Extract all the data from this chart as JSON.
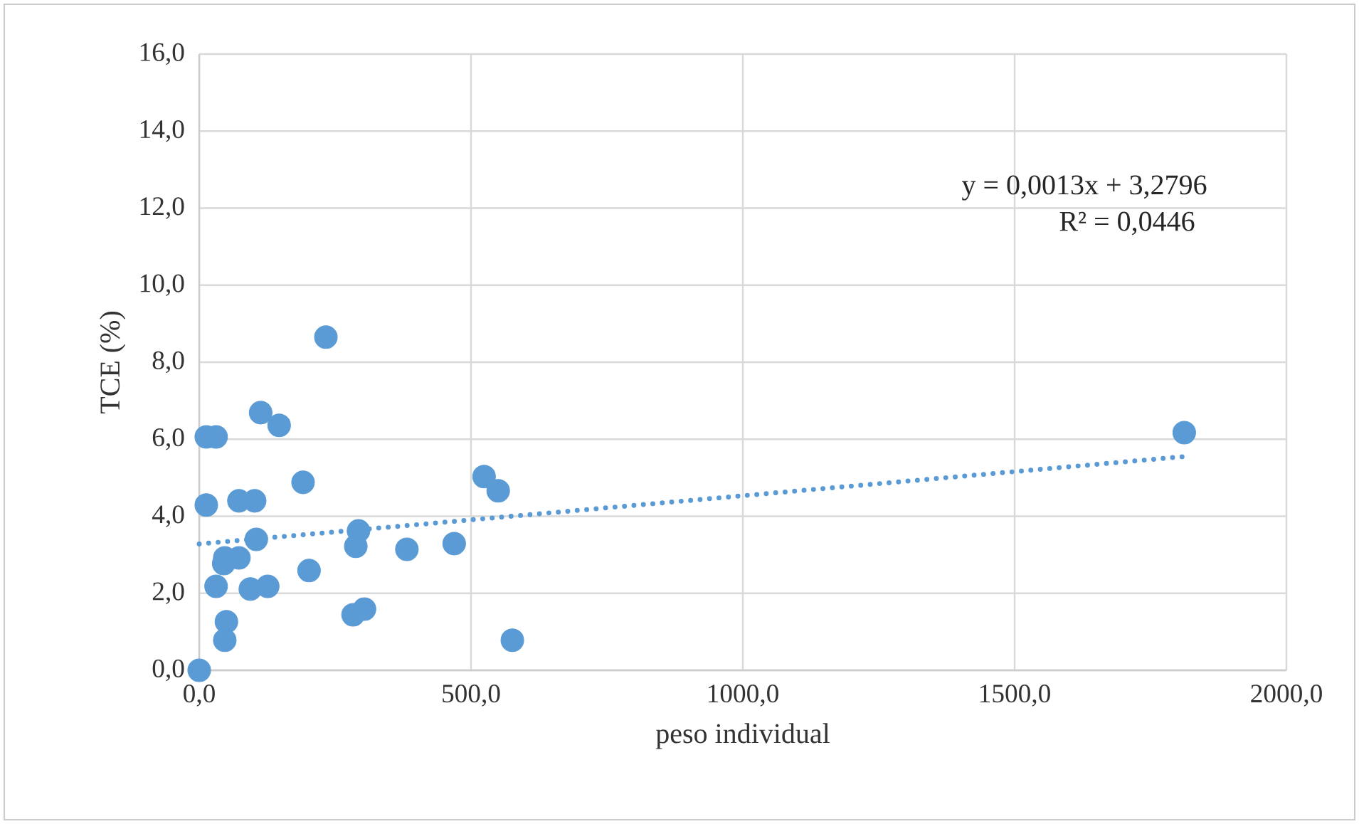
{
  "chart_data": {
    "type": "scatter",
    "xlabel": "peso individual",
    "ylabel": "TCE (%)",
    "xlim": [
      0,
      2000
    ],
    "ylim": [
      0,
      16
    ],
    "xticks": [
      {
        "value": 0,
        "label": "0,0"
      },
      {
        "value": 500,
        "label": "500,0"
      },
      {
        "value": 1000,
        "label": "1000,0"
      },
      {
        "value": 1500,
        "label": "1500,0"
      },
      {
        "value": 2000,
        "label": "2000,0"
      }
    ],
    "yticks": [
      {
        "value": 0,
        "label": "0,0"
      },
      {
        "value": 2,
        "label": "2,0"
      },
      {
        "value": 4,
        "label": "4,0"
      },
      {
        "value": 6,
        "label": "6,0"
      },
      {
        "value": 8,
        "label": "8,0"
      },
      {
        "value": 10,
        "label": "10,0"
      },
      {
        "value": 12,
        "label": "12,0"
      },
      {
        "value": 14,
        "label": "14,0"
      },
      {
        "value": 16,
        "label": "16,0"
      }
    ],
    "grid": true,
    "marker": "circle",
    "annotations": [
      "y = 0,0013x + 3,2796",
      "R² = 0,0446"
    ],
    "series": [
      {
        "color": "#5b9bd5",
        "x": [
          0,
          13,
          31,
          13,
          31,
          45,
          47,
          50,
          47,
          73,
          102,
          73,
          94,
          126,
          105,
          113,
          147,
          191,
          202,
          233,
          293,
          288,
          283,
          304,
          382,
          469,
          524,
          550,
          576,
          1812
        ],
        "values": [
          0,
          6.06,
          6.06,
          4.29,
          2.18,
          2.77,
          2.92,
          1.26,
          0.78,
          4.4,
          4.4,
          2.92,
          2.11,
          2.18,
          3.4,
          6.69,
          6.36,
          4.88,
          2.59,
          8.65,
          3.62,
          3.22,
          1.44,
          1.59,
          3.14,
          3.29,
          5.03,
          4.66,
          0.78,
          6.17
        ]
      },
      {
        "type": "line",
        "color": "#5b9bd5",
        "line_style": "dotted",
        "marker": "none",
        "x": [
          0,
          1812
        ],
        "values": [
          3.28,
          5.55
        ]
      }
    ]
  }
}
